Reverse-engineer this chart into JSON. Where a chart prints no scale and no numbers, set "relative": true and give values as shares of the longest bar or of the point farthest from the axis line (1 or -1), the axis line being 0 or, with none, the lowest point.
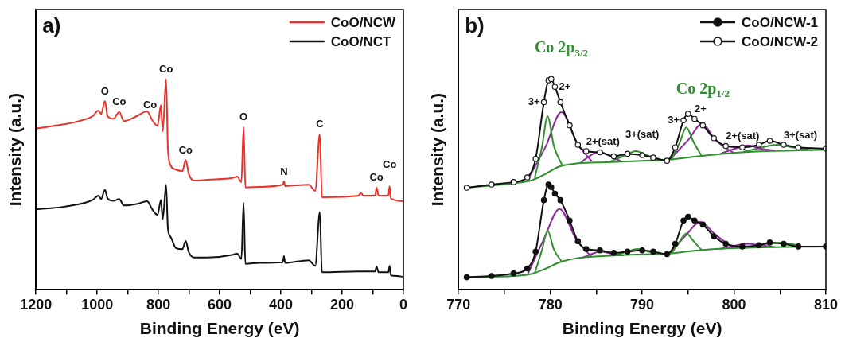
{
  "chart_data": [
    {
      "type": "line",
      "relative": true,
      "xlabel": "Binding Energy (eV)",
      "ylabel": "Intensity (a.u.)",
      "legend": "top right",
      "xlim": [
        1200,
        0
      ],
      "xticks": [
        1200,
        {
          "value": 1100,
          "label": null
        },
        1000,
        {
          "value": 900,
          "label": null
        },
        800,
        {
          "value": 700,
          "label": null
        },
        600,
        {
          "value": 500,
          "label": null
        },
        400,
        {
          "value": 300,
          "label": null
        },
        200,
        {
          "value": 100,
          "label": null
        },
        0
      ],
      "series": [
        {
          "name": "CoO/NCW",
          "color": "#e8322b",
          "x": [
            1200,
            1109,
            1066,
            1015,
            996,
            987,
            975,
            966,
            947,
            928,
            913,
            871,
            837,
            820,
            803,
            792,
            786,
            775,
            769,
            760,
            743,
            722,
            711,
            701,
            683,
            641,
            556,
            543,
            529,
            522,
            516,
            471,
            394,
            390,
            386,
            309,
            288,
            273,
            266,
            147,
            139,
            130,
            92,
            88,
            81,
            49,
            45,
            41,
            0
          ],
          "values": [
            0.765,
            0.785,
            0.798,
            0.824,
            0.85,
            0.834,
            0.896,
            0.824,
            0.811,
            0.844,
            0.8,
            0.824,
            0.847,
            0.804,
            0.778,
            0.876,
            0.752,
            1.0,
            0.668,
            0.589,
            0.57,
            0.563,
            0.615,
            0.55,
            0.518,
            0.522,
            0.531,
            0.537,
            0.511,
            0.772,
            0.485,
            0.488,
            0.498,
            0.514,
            0.492,
            0.498,
            0.469,
            0.739,
            0.439,
            0.446,
            0.459,
            0.446,
            0.448,
            0.485,
            0.446,
            0.448,
            0.492,
            0.433,
            0.42
          ]
        },
        {
          "name": "CoO/NCT",
          "color": "#111111",
          "x": [
            1200,
            1109,
            1015,
            996,
            987,
            975,
            966,
            947,
            928,
            913,
            871,
            837,
            820,
            803,
            792,
            786,
            775,
            769,
            760,
            743,
            722,
            711,
            701,
            683,
            641,
            556,
            543,
            529,
            522,
            516,
            471,
            394,
            390,
            386,
            309,
            288,
            273,
            266,
            147,
            92,
            88,
            81,
            49,
            45,
            41,
            20,
            0
          ],
          "values": [
            0.381,
            0.394,
            0.426,
            0.446,
            0.43,
            0.475,
            0.433,
            0.422,
            0.43,
            0.4,
            0.407,
            0.42,
            0.381,
            0.355,
            0.426,
            0.335,
            0.498,
            0.289,
            0.25,
            0.198,
            0.192,
            0.231,
            0.179,
            0.153,
            0.153,
            0.166,
            0.172,
            0.146,
            0.413,
            0.123,
            0.127,
            0.13,
            0.159,
            0.127,
            0.14,
            0.113,
            0.368,
            0.083,
            0.087,
            0.087,
            0.11,
            0.083,
            0.083,
            0.113,
            0.068,
            0.065,
            0.061
          ]
        }
      ],
      "annotations": [
        "a)",
        {
          "text": "O",
          "x": 975,
          "y": 0.896
        },
        {
          "text": "Co",
          "x": 928,
          "y": 0.844
        },
        {
          "text": "Co",
          "x": 792,
          "y": 0.876
        },
        {
          "text": "Co",
          "x": 775,
          "y": 1.0
        },
        {
          "text": "Co",
          "x": 711,
          "y": 0.615
        },
        {
          "text": "O",
          "x": 522,
          "y": 0.772
        },
        {
          "text": "N",
          "x": 390,
          "y": 0.514
        },
        {
          "text": "C",
          "x": 273,
          "y": 0.739
        },
        {
          "text": "Co",
          "x": 88,
          "y": 0.485
        },
        {
          "text": "Co",
          "x": 45,
          "y": 0.492
        }
      ]
    },
    {
      "type": "line",
      "relative": true,
      "xlabel": "Binding Energy (eV)",
      "ylabel": "Intensity (a.u.)",
      "legend": "top right",
      "xlim": [
        770,
        810
      ],
      "xticks": [
        770,
        {
          "value": 775,
          "label": null
        },
        780,
        {
          "value": 785,
          "label": null
        },
        790,
        {
          "value": 795,
          "label": null
        },
        800,
        {
          "value": 805,
          "label": null
        },
        810
      ],
      "series": [
        {
          "name": "CoO/NCW-1",
          "color": "#111111",
          "marker": "circle",
          "x": [
            770.9,
            773.6,
            776.0,
            777.5,
            778.4,
            779.3,
            779.8,
            780.1,
            780.5,
            781.1,
            782.1,
            783.0,
            783.9,
            785.4,
            786.9,
            788.4,
            790.0,
            791.2,
            792.7,
            793.6,
            794.5,
            795.0,
            795.7,
            796.6,
            797.8,
            799.1,
            800.9,
            802.7,
            803.9,
            805.4,
            807.0,
            810
          ],
          "values": [
            0.059,
            0.065,
            0.077,
            0.101,
            0.181,
            0.425,
            0.499,
            0.487,
            0.456,
            0.425,
            0.328,
            0.23,
            0.193,
            0.187,
            0.175,
            0.181,
            0.187,
            0.181,
            0.169,
            0.218,
            0.328,
            0.346,
            0.328,
            0.309,
            0.254,
            0.218,
            0.205,
            0.211,
            0.224,
            0.218,
            0.205,
            0.205
          ]
        },
        {
          "name": "CoO/NCW-2",
          "color": "#111111",
          "marker": "circle",
          "colors": [
            "#ffffff",
            "#ffffff",
            "#ffffff",
            "#ffffff",
            "#ffffff",
            "#ffffff",
            "#ffffff",
            "#ffffff",
            "#ffffff",
            "#ffffff",
            "#ffffff",
            "#ffffff",
            "#ffffff",
            "#ffffff",
            "#ffffff",
            "#ffffff",
            "#ffffff",
            "#ffffff",
            "#ffffff",
            "#ffffff",
            "#ffffff",
            "#ffffff",
            "#ffffff",
            "#ffffff",
            "#ffffff",
            "#ffffff",
            "#ffffff",
            "#ffffff",
            "#ffffff",
            "#ffffff",
            "#ffffff",
            "#ffffff"
          ],
          "x": [
            770.9,
            773.6,
            776.0,
            777.5,
            778.4,
            779.3,
            779.8,
            780.1,
            780.5,
            781.1,
            782.1,
            783.0,
            783.9,
            785.4,
            786.9,
            788.4,
            790.0,
            791.2,
            792.7,
            793.6,
            794.5,
            795.0,
            795.7,
            796.6,
            797.8,
            799.1,
            800.9,
            802.7,
            803.9,
            805.4,
            807.0,
            810
          ],
          "values": [
            0.484,
            0.499,
            0.511,
            0.533,
            0.621,
            0.89,
            0.994,
            1.0,
            0.963,
            0.89,
            0.78,
            0.688,
            0.658,
            0.652,
            0.633,
            0.645,
            0.639,
            0.627,
            0.612,
            0.676,
            0.804,
            0.835,
            0.811,
            0.78,
            0.719,
            0.682,
            0.676,
            0.688,
            0.707,
            0.688,
            0.676,
            0.67
          ]
        },
        {
          "color": "#2f8f2f",
          "x": [
            770.9,
            776,
            778,
            779.5,
            781,
            783,
            786,
            790,
            793,
            795,
            798,
            802,
            810
          ],
          "values": [
            0.484,
            0.505,
            0.52,
            0.55,
            0.585,
            0.6,
            0.605,
            0.612,
            0.618,
            0.628,
            0.642,
            0.655,
            0.664
          ]
        },
        {
          "color": "#2f8f2f",
          "x": [
            778.3,
            779.1,
            779.7,
            780.4,
            781.3
          ],
          "values": [
            0.53,
            0.68,
            0.823,
            0.68,
            0.59
          ]
        },
        {
          "color": "#8e2a9c",
          "x": [
            777.5,
            779.5,
            781.2,
            783,
            784.5
          ],
          "values": [
            0.52,
            0.68,
            0.843,
            0.69,
            0.61
          ]
        },
        {
          "color": "#8e2a9c",
          "x": [
            783.3,
            784.3,
            785.3,
            786.5,
            787.8
          ],
          "values": [
            0.603,
            0.635,
            0.655,
            0.635,
            0.607
          ]
        },
        {
          "color": "#2f8f2f",
          "x": [
            786.5,
            788,
            789.3,
            790.7,
            792.2
          ],
          "values": [
            0.607,
            0.635,
            0.658,
            0.635,
            0.614
          ]
        },
        {
          "color": "#2f8f2f",
          "x": [
            793.2,
            794.1,
            794.8,
            795.6,
            796.5
          ],
          "values": [
            0.62,
            0.7,
            0.77,
            0.7,
            0.633
          ]
        },
        {
          "color": "#8e2a9c",
          "x": [
            793,
            795,
            796.5,
            798,
            800
          ],
          "values": [
            0.618,
            0.71,
            0.786,
            0.71,
            0.648
          ]
        },
        {
          "color": "#8e2a9c",
          "x": [
            798.5,
            800,
            801.5,
            803,
            804.5
          ],
          "values": [
            0.645,
            0.668,
            0.685,
            0.668,
            0.66
          ]
        },
        {
          "color": "#2f8f2f",
          "x": [
            801,
            803,
            804.7,
            806.5,
            808.5
          ],
          "values": [
            0.654,
            0.675,
            0.688,
            0.675,
            0.662
          ]
        },
        {
          "color": "#2f8f2f",
          "x": [
            770.9,
            776,
            778,
            779.5,
            781,
            783,
            786,
            790,
            793,
            795,
            798,
            802,
            810
          ],
          "values": [
            0.059,
            0.065,
            0.075,
            0.1,
            0.13,
            0.15,
            0.16,
            0.168,
            0.172,
            0.182,
            0.193,
            0.2,
            0.205
          ]
        },
        {
          "color": "#2f8f2f",
          "x": [
            778.3,
            779.1,
            779.7,
            780.4,
            781.3
          ],
          "values": [
            0.078,
            0.19,
            0.279,
            0.19,
            0.13
          ]
        },
        {
          "color": "#8e2a9c",
          "x": [
            777.5,
            779.3,
            781,
            782.8,
            784.5
          ],
          "values": [
            0.07,
            0.24,
            0.383,
            0.24,
            0.155
          ]
        },
        {
          "color": "#8e2a9c",
          "x": [
            783.5,
            784.5,
            785.5,
            786.7,
            788
          ],
          "values": [
            0.152,
            0.17,
            0.181,
            0.17,
            0.163
          ]
        },
        {
          "color": "#2f8f2f",
          "x": [
            787,
            788.3,
            789.5,
            790.8,
            792.2
          ],
          "values": [
            0.163,
            0.18,
            0.193,
            0.18,
            0.17
          ]
        },
        {
          "color": "#2f8f2f",
          "x": [
            793.2,
            794.1,
            794.8,
            795.6,
            796.5
          ],
          "values": [
            0.174,
            0.23,
            0.267,
            0.23,
            0.187
          ]
        },
        {
          "color": "#8e2a9c",
          "x": [
            793,
            794.8,
            796.3,
            798,
            800
          ],
          "values": [
            0.172,
            0.26,
            0.322,
            0.26,
            0.196
          ]
        },
        {
          "color": "#8e2a9c",
          "x": [
            798.5,
            800,
            801.5,
            803,
            804.5
          ],
          "values": [
            0.193,
            0.208,
            0.218,
            0.21,
            0.202
          ]
        },
        {
          "color": "#2f8f2f",
          "x": [
            801,
            803,
            805,
            806.8
          ],
          "values": [
            0.198,
            0.213,
            0.224,
            0.213
          ]
        }
      ],
      "annotations": [
        "b)",
        "Co 2p$_{3/2}$",
        "Co 2p$_{1/2}$",
        {
          "text": "3+",
          "x": 779.3,
          "y": 0.89
        },
        {
          "text": "2+",
          "x": 780.5,
          "y": 0.963
        },
        {
          "text": "2+(sat)",
          "x": 783.9,
          "y": 0.658
        },
        {
          "text": "3+(sat)",
          "x": 790.0,
          "y": 0.639
        },
        {
          "text": "3+",
          "x": 794.5,
          "y": 0.804
        },
        {
          "text": "2+",
          "x": 795.7,
          "y": 0.811
        },
        {
          "text": "2+(sat)",
          "x": 799.1,
          "y": 0.682
        },
        {
          "text": "3+(sat)",
          "x": 805.4,
          "y": 0.688
        }
      ]
    }
  ]
}
